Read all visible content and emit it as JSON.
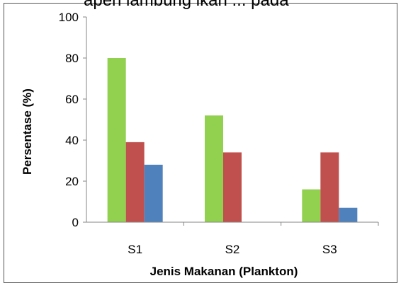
{
  "top_caption": "apen lambung ikan ... pada",
  "chart_data": {
    "type": "bar",
    "title": "",
    "xlabel": "Jenis Makanan (Plankton)",
    "ylabel": "Persentase (%)",
    "categories": [
      "S1",
      "S2",
      "S3"
    ],
    "series": [
      {
        "values": [
          80,
          52,
          16
        ],
        "color": "#92D050"
      },
      {
        "values": [
          39,
          34,
          34
        ],
        "color": "#C0504D"
      },
      {
        "values": [
          28,
          0,
          7
        ],
        "color": "#4F81BD"
      }
    ],
    "ylim": [
      0,
      100
    ],
    "yticks": [
      0,
      20,
      40,
      60,
      80,
      100
    ],
    "grid": false,
    "legend": "none"
  }
}
